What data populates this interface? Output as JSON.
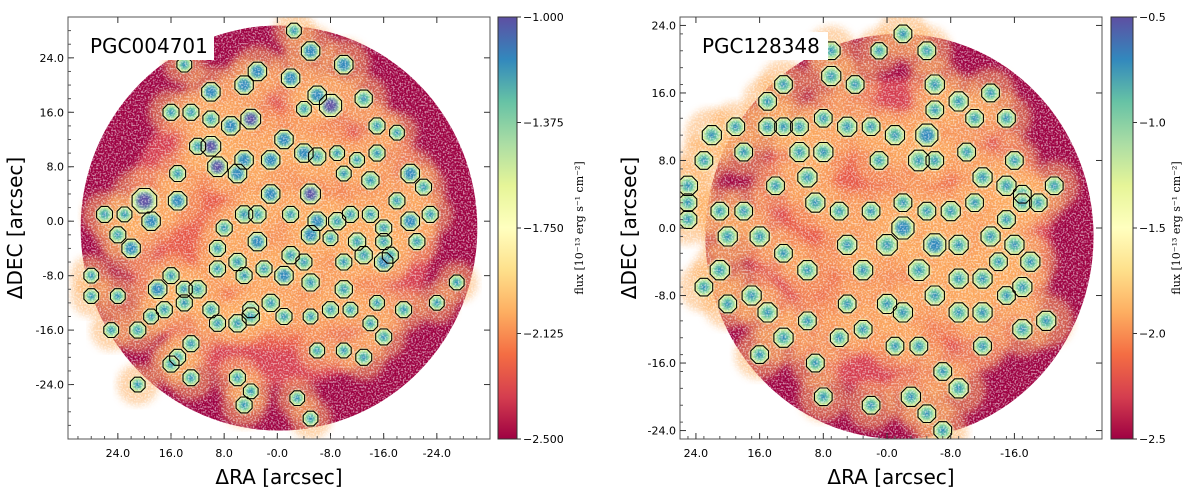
{
  "figure": {
    "description_type": "two-panel flux maps with region contours"
  },
  "colors": {
    "colormap": [
      "#9e0142",
      "#d53e4f",
      "#f46d43",
      "#fdae61",
      "#fee08b",
      "#ffffbf",
      "#e6f598",
      "#abdda4",
      "#66c2a5",
      "#3288bd",
      "#5e4fa2"
    ],
    "contour": "#000000",
    "frame": "#555555"
  },
  "chart_data": [
    {
      "type": "heatmap",
      "title": "PGC004701",
      "xlabel": "ΔRA [arcsec]",
      "ylabel": "ΔDEC [arcsec]",
      "xlim": [
        31.5,
        -32
      ],
      "ylim": [
        -32,
        30
      ],
      "xticks": [
        24,
        16,
        8,
        0,
        -8,
        -16,
        -24
      ],
      "xtick_labels": [
        "24.0",
        "16.0",
        "8.0",
        "-0.0",
        "-8.0",
        "-16.0",
        "-24.0"
      ],
      "yticks": [
        24,
        16,
        8,
        0,
        -8,
        -16,
        -24
      ],
      "ytick_labels": [
        "24.0",
        "16.0",
        "8.0",
        "0.0",
        "-8.0",
        "-16.0",
        "-24.0"
      ],
      "colorbar": {
        "label": "flux [10⁻¹³ erg s⁻¹ cm⁻²]",
        "range": [
          -2.5,
          -1.0
        ],
        "ticks": [
          -1.0,
          -1.375,
          -1.75,
          -2.125,
          -2.5
        ],
        "tick_labels": [
          "−1.000",
          "−1.375",
          "−1.750",
          "−2.125",
          "−2.500"
        ]
      },
      "clumps": [
        [
          -2.5,
          28,
          1.2
        ],
        [
          -5,
          25,
          1.5
        ],
        [
          -10,
          23,
          1.5
        ],
        [
          14,
          23,
          1.2
        ],
        [
          3,
          22,
          1.5
        ],
        [
          -2,
          21,
          1.5
        ],
        [
          10,
          19,
          1.5
        ],
        [
          5,
          20,
          1.5
        ],
        [
          -8,
          17,
          1.8
        ],
        [
          -13,
          18,
          1.4
        ],
        [
          -6,
          18.5,
          1.5
        ],
        [
          -4,
          16.5,
          1.2
        ],
        [
          4,
          15,
          1.6
        ],
        [
          -15,
          14,
          1.3
        ],
        [
          16,
          16,
          1.3
        ],
        [
          13,
          16,
          1.3
        ],
        [
          10,
          15,
          1.3
        ],
        [
          7,
          14,
          1.5
        ],
        [
          -18,
          13,
          1.2
        ],
        [
          -1,
          12,
          1.5
        ],
        [
          1,
          9,
          1.5
        ],
        [
          5,
          9,
          1.5
        ],
        [
          -4,
          10,
          1.5
        ],
        [
          -6,
          9.5,
          1.4
        ],
        [
          -9,
          10,
          1.2
        ],
        [
          -12,
          9,
          1.2
        ],
        [
          -15,
          10,
          1.3
        ],
        [
          10,
          11,
          1.6
        ],
        [
          12,
          11,
          1.3
        ],
        [
          9,
          8,
          1.6
        ],
        [
          6,
          7,
          1.5
        ],
        [
          15,
          7,
          1.3
        ],
        [
          15,
          3,
          1.5
        ],
        [
          -10,
          7,
          1.2
        ],
        [
          -14,
          6,
          1.4
        ],
        [
          -20,
          7,
          1.5
        ],
        [
          -22,
          5,
          1.3
        ],
        [
          -18,
          3,
          1.3
        ],
        [
          -20,
          0,
          1.5
        ],
        [
          -23,
          1,
          1.3
        ],
        [
          1,
          4,
          1.5
        ],
        [
          -5,
          4,
          1.6
        ],
        [
          3,
          1,
          1.4
        ],
        [
          5,
          1,
          1.4
        ],
        [
          -2,
          1,
          1.3
        ],
        [
          -6,
          0,
          1.5
        ],
        [
          -9,
          0,
          1.4
        ],
        [
          -11,
          1,
          1.3
        ],
        [
          -14,
          1,
          1.3
        ],
        [
          -16,
          -1,
          1.3
        ],
        [
          26,
          1,
          1.3
        ],
        [
          23,
          1,
          1.2
        ],
        [
          20,
          3,
          2.0
        ],
        [
          19,
          0,
          1.5
        ],
        [
          8,
          -1,
          1.3
        ],
        [
          3,
          -3,
          1.5
        ],
        [
          -5,
          -2,
          1.5
        ],
        [
          -8,
          -2.5,
          1.2
        ],
        [
          -12,
          -3,
          1.4
        ],
        [
          -16,
          -3,
          1.3
        ],
        [
          -21,
          -3,
          1.3
        ],
        [
          24,
          -2,
          1.3
        ],
        [
          22,
          -4,
          1.5
        ],
        [
          9,
          -4,
          1.3
        ],
        [
          6,
          -6,
          1.4
        ],
        [
          -2,
          -5,
          1.4
        ],
        [
          -4,
          -6,
          1.3
        ],
        [
          -10,
          -6,
          1.3
        ],
        [
          -13,
          -5,
          1.4
        ],
        [
          -16,
          -6,
          1.5
        ],
        [
          -17,
          -5,
          1.3
        ],
        [
          2,
          -7,
          1.3
        ],
        [
          -1,
          -8,
          1.5
        ],
        [
          -5,
          -9,
          1.4
        ],
        [
          5,
          -8,
          1.3
        ],
        [
          9,
          -7,
          1.3
        ],
        [
          16,
          -8,
          1.3
        ],
        [
          18,
          -10,
          1.5
        ],
        [
          14,
          -10,
          1.3
        ],
        [
          12,
          -10,
          1.4
        ],
        [
          28,
          -8,
          1.2
        ],
        [
          -10,
          -10,
          1.4
        ],
        [
          -15,
          -12,
          1.2
        ],
        [
          -24,
          -12,
          1.2
        ],
        [
          -27,
          -9,
          1.2
        ],
        [
          28,
          -11,
          1.2
        ],
        [
          24,
          -11,
          1.2
        ],
        [
          10,
          -13,
          1.3
        ],
        [
          4,
          -13,
          1.3
        ],
        [
          1,
          -12,
          1.4
        ],
        [
          -1,
          -14,
          1.3
        ],
        [
          -5,
          -14,
          1.2
        ],
        [
          -8,
          -13,
          1.3
        ],
        [
          -11,
          -13,
          1.2
        ],
        [
          -14,
          -15,
          1.2
        ],
        [
          -16,
          -17,
          1.3
        ],
        [
          -19,
          -13,
          1.3
        ],
        [
          6,
          -15,
          1.4
        ],
        [
          4,
          -14,
          1.4
        ],
        [
          9,
          -15,
          1.3
        ],
        [
          14,
          -12,
          1.3
        ],
        [
          17,
          -13,
          1.3
        ],
        [
          19,
          -14,
          1.2
        ],
        [
          21,
          -16,
          1.3
        ],
        [
          25,
          -16,
          1.2
        ],
        [
          -10,
          -19,
          1.2
        ],
        [
          -13,
          -20,
          1.3
        ],
        [
          -6,
          -19,
          1.2
        ],
        [
          13,
          -18,
          1.3
        ],
        [
          15,
          -20,
          1.3
        ],
        [
          16,
          -21,
          1.3
        ],
        [
          13,
          -23,
          1.3
        ],
        [
          6,
          -23,
          1.3
        ],
        [
          4,
          -25,
          1.2
        ],
        [
          5,
          -27,
          1.3
        ],
        [
          -3,
          -26,
          1.2
        ],
        [
          -5,
          -29,
          1.2
        ],
        [
          21,
          -24,
          1.2
        ]
      ]
    },
    {
      "type": "heatmap",
      "title": "PGC128348",
      "xlabel": "ΔRA [arcsec]",
      "ylabel": "ΔDEC [arcsec]",
      "xlim": [
        26,
        -27
      ],
      "ylim": [
        -25,
        25
      ],
      "xticks": [
        24,
        16,
        8,
        0,
        -8,
        -16
      ],
      "xtick_labels": [
        "24.0",
        "16.0",
        "8.0",
        "-0.0",
        "-8.0",
        "-16.0"
      ],
      "yticks": [
        24,
        16,
        8,
        0,
        -8,
        -16,
        -24
      ],
      "ytick_labels": [
        "24.0",
        "16.0",
        "8.0",
        "0.0",
        "-8.0",
        "-16.0",
        "-24.0"
      ],
      "colorbar": {
        "label": "flux [10⁻¹³ erg s⁻¹ cm⁻²]",
        "range": [
          -2.5,
          -0.5
        ],
        "ticks": [
          -0.5,
          -1.0,
          -1.5,
          -2.0,
          -2.5
        ],
        "tick_labels": [
          "−0.5",
          "−1.0",
          "−1.5",
          "−2.0",
          "−2.5"
        ]
      },
      "clumps": [
        [
          7,
          21,
          1.2
        ],
        [
          1,
          21,
          1.1
        ],
        [
          -2,
          23,
          1.2
        ],
        [
          -5,
          21,
          1.2
        ],
        [
          7,
          18,
          1.3
        ],
        [
          13,
          17,
          1.2
        ],
        [
          15,
          15,
          1.2
        ],
        [
          4,
          17,
          1.2
        ],
        [
          -6,
          17,
          1.3
        ],
        [
          -9,
          15,
          1.3
        ],
        [
          -6,
          14,
          1.2
        ],
        [
          -13,
          16,
          1.2
        ],
        [
          -15,
          13,
          1.2
        ],
        [
          -11,
          13,
          1.2
        ],
        [
          -5,
          11,
          1.5
        ],
        [
          -1,
          11,
          1.3
        ],
        [
          2,
          12,
          1.2
        ],
        [
          5,
          12,
          1.3
        ],
        [
          8,
          13,
          1.2
        ],
        [
          11,
          12,
          1.2
        ],
        [
          13,
          12,
          1.2
        ],
        [
          15,
          12,
          1.2
        ],
        [
          19,
          12,
          1.2
        ],
        [
          22,
          11,
          1.3
        ],
        [
          18,
          9,
          1.2
        ],
        [
          11,
          9,
          1.3
        ],
        [
          8,
          9,
          1.3
        ],
        [
          1,
          8,
          1.2
        ],
        [
          -4,
          8,
          1.4
        ],
        [
          -6,
          8,
          1.2
        ],
        [
          -10,
          9,
          1.2
        ],
        [
          -12,
          6,
          1.3
        ],
        [
          -15,
          5,
          1.3
        ],
        [
          -17,
          4,
          1.2
        ],
        [
          -21,
          5,
          1.2
        ],
        [
          -16,
          8,
          1.2
        ],
        [
          23,
          8,
          1.2
        ],
        [
          25,
          5,
          1.3
        ],
        [
          25,
          3,
          1.2
        ],
        [
          25,
          1,
          1.2
        ],
        [
          21,
          2,
          1.2
        ],
        [
          18,
          2,
          1.2
        ],
        [
          14,
          5,
          1.2
        ],
        [
          10,
          6,
          1.3
        ],
        [
          9,
          3,
          1.3
        ],
        [
          6,
          2,
          1.2
        ],
        [
          2,
          2,
          1.2
        ],
        [
          -2,
          3,
          1.2
        ],
        [
          -5,
          2,
          1.2
        ],
        [
          -8,
          2,
          1.3
        ],
        [
          -11,
          3,
          1.2
        ],
        [
          -15,
          1,
          1.2
        ],
        [
          -17,
          3,
          1.2
        ],
        [
          -19,
          3,
          1.2
        ],
        [
          16,
          -1,
          1.3
        ],
        [
          20,
          -1,
          1.3
        ],
        [
          -2,
          0,
          1.5
        ],
        [
          0,
          -2,
          1.4
        ],
        [
          -6,
          -2,
          1.5
        ],
        [
          -9,
          -2,
          1.3
        ],
        [
          -13,
          -1,
          1.3
        ],
        [
          -16,
          -2,
          1.3
        ],
        [
          -18,
          -4,
          1.3
        ],
        [
          -17,
          -7,
          1.3
        ],
        [
          -15,
          -8,
          1.2
        ],
        [
          13,
          -3,
          1.2
        ],
        [
          10,
          -5,
          1.3
        ],
        [
          5,
          -2,
          1.3
        ],
        [
          3,
          -5,
          1.3
        ],
        [
          -4,
          -5,
          1.4
        ],
        [
          -9,
          -6,
          1.3
        ],
        [
          -12,
          -6,
          1.3
        ],
        [
          -14,
          -4,
          1.2
        ],
        [
          21,
          -5,
          1.3
        ],
        [
          23,
          -7,
          1.2
        ],
        [
          20,
          -9,
          1.2
        ],
        [
          17,
          -8,
          1.3
        ],
        [
          15,
          -10,
          1.3
        ],
        [
          13,
          -13,
          1.3
        ],
        [
          10,
          -11,
          1.2
        ],
        [
          5,
          -9,
          1.2
        ],
        [
          0,
          -9,
          1.3
        ],
        [
          -2,
          -10,
          1.3
        ],
        [
          -6,
          -8,
          1.3
        ],
        [
          -9,
          -10,
          1.3
        ],
        [
          -12,
          -10,
          1.3
        ],
        [
          -17,
          -12,
          1.3
        ],
        [
          -20,
          -11,
          1.3
        ],
        [
          6,
          -13,
          1.2
        ],
        [
          3,
          -12,
          1.2
        ],
        [
          -1,
          -14,
          1.2
        ],
        [
          -4,
          -14,
          1.2
        ],
        [
          -12,
          -14,
          1.2
        ],
        [
          16,
          -15,
          1.2
        ],
        [
          9,
          -16,
          1.2
        ],
        [
          -7,
          -17,
          1.2
        ],
        [
          -9,
          -19,
          1.3
        ],
        [
          -3,
          -20,
          1.3
        ],
        [
          8,
          -20,
          1.2
        ],
        [
          2,
          -21,
          1.2
        ],
        [
          -5,
          -22,
          1.2
        ],
        [
          -7,
          -24,
          1.2
        ]
      ]
    }
  ]
}
